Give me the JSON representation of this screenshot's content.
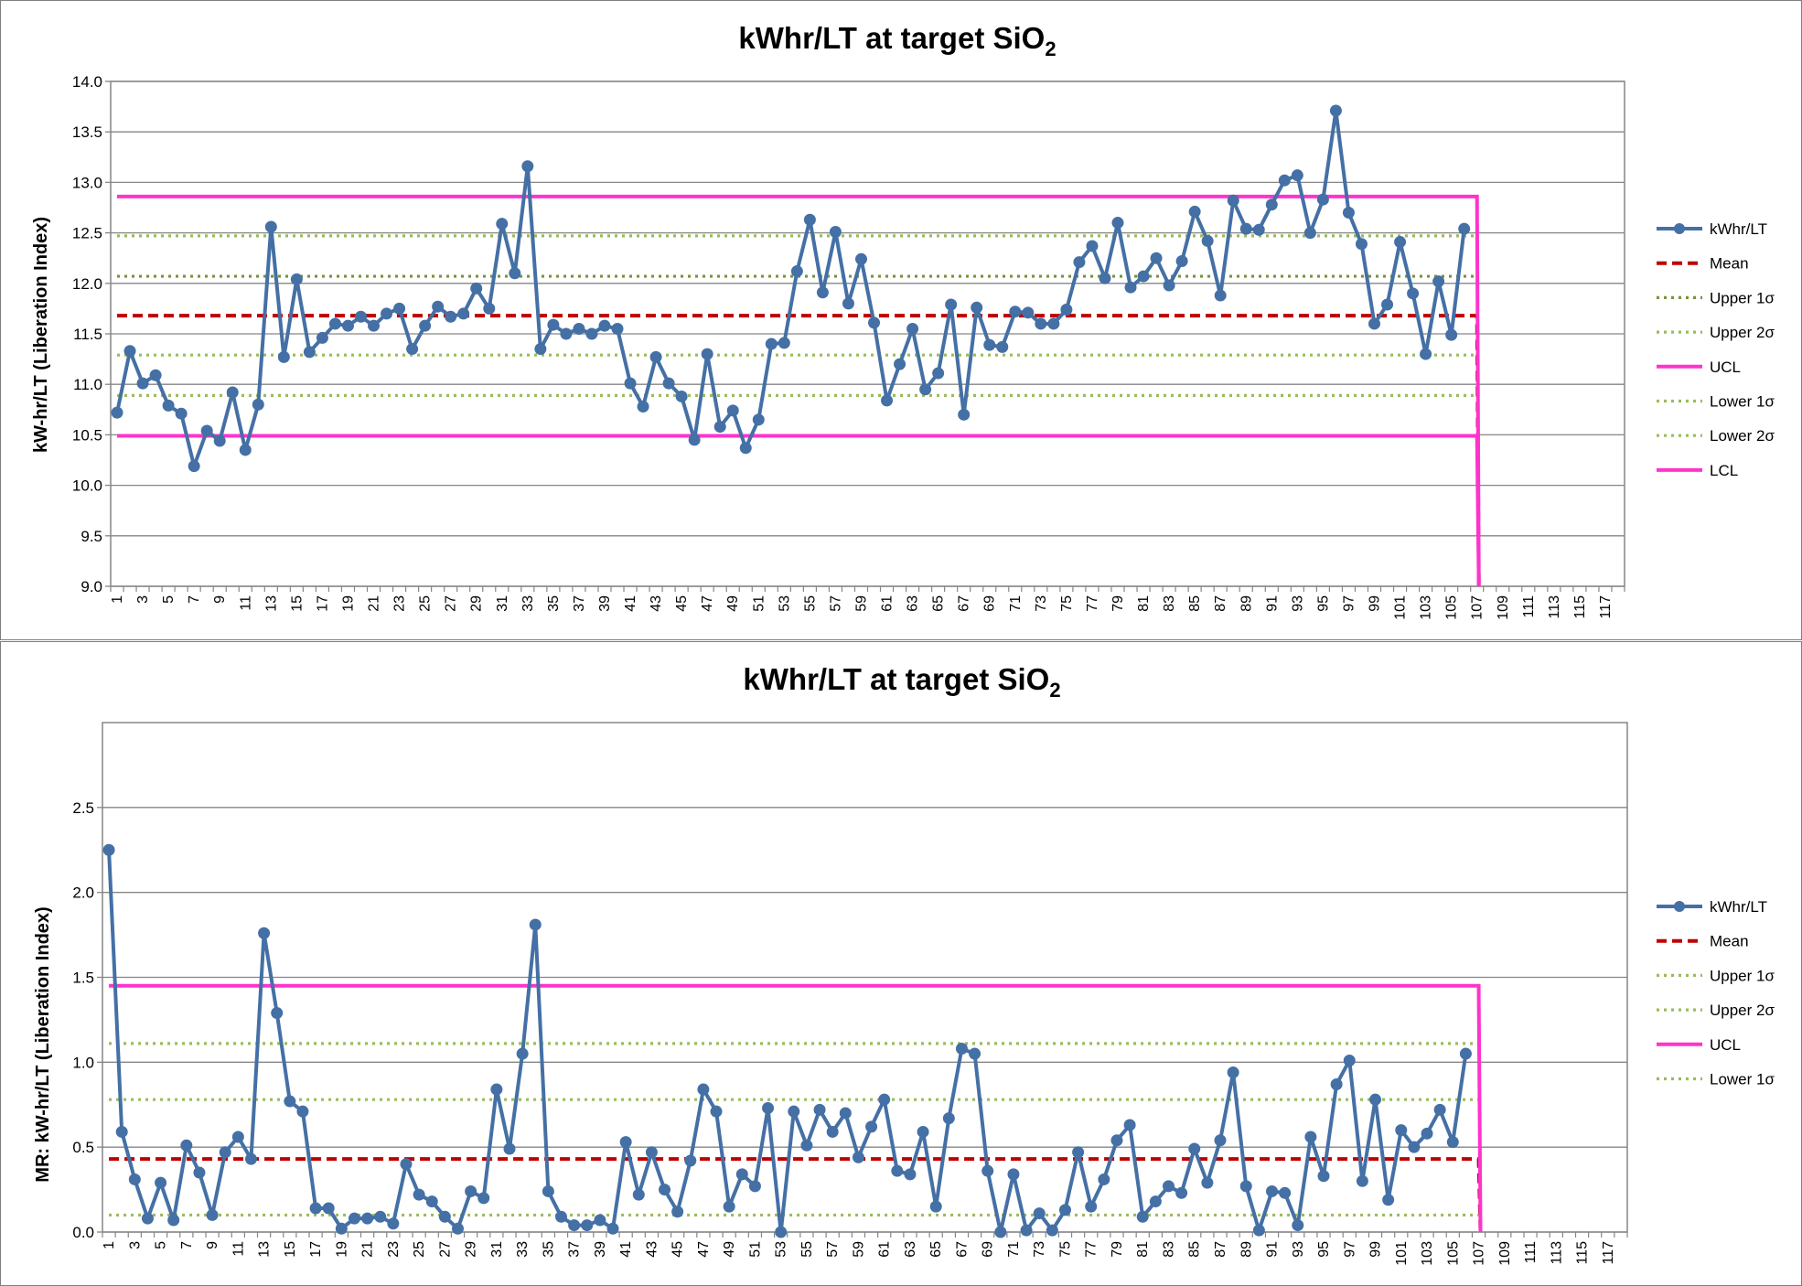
{
  "chart_data": [
    {
      "type": "line",
      "title": "kWhr/LT at target SiO",
      "title_subscript": "2",
      "xlabel": "",
      "ylabel": "kW-hr/LT (Liberation Index)",
      "ylim": [
        9.0,
        14.0
      ],
      "yticks": [
        "9.0",
        "9.5",
        "10.0",
        "10.5",
        "11.0",
        "11.5",
        "12.0",
        "12.5",
        "13.0",
        "13.5",
        "14.0"
      ],
      "x_categories_count": 118,
      "x_tick_labels": [
        "1",
        "3",
        "5",
        "7",
        "9",
        "11",
        "13",
        "15",
        "17",
        "19",
        "21",
        "23",
        "25",
        "27",
        "29",
        "31",
        "33",
        "35",
        "37",
        "39",
        "41",
        "43",
        "45",
        "47",
        "49",
        "51",
        "53",
        "55",
        "57",
        "59",
        "61",
        "63",
        "65",
        "67",
        "69",
        "71",
        "73",
        "75",
        "77",
        "79",
        "81",
        "83",
        "85",
        "87",
        "89",
        "91",
        "93",
        "95",
        "97",
        "99",
        "101",
        "103",
        "105",
        "107",
        "109",
        "111",
        "113",
        "115",
        "117"
      ],
      "grid": true,
      "legend_position": "right",
      "series": [
        {
          "name": "kWhr/LT",
          "color": "#4470a5",
          "style": "line-marker",
          "values": [
            10.72,
            11.33,
            11.01,
            11.09,
            10.79,
            10.71,
            10.19,
            10.54,
            10.44,
            10.92,
            10.35,
            10.8,
            12.56,
            11.27,
            12.04,
            11.32,
            11.46,
            11.6,
            11.58,
            11.67,
            11.58,
            11.7,
            11.75,
            11.35,
            11.58,
            11.77,
            11.67,
            11.7,
            11.95,
            11.75,
            12.59,
            12.1,
            13.16,
            11.35,
            11.59,
            11.5,
            11.55,
            11.5,
            11.58,
            11.55,
            11.01,
            10.78,
            11.27,
            11.01,
            10.88,
            10.45,
            11.3,
            10.58,
            10.74,
            10.37,
            10.65,
            11.4,
            11.41,
            12.12,
            12.63,
            11.91,
            12.51,
            11.8,
            12.24,
            11.61,
            10.84,
            11.2,
            11.55,
            10.95,
            11.11,
            11.79,
            10.7,
            11.76,
            11.39,
            11.37,
            11.72,
            11.71,
            11.6,
            11.6,
            11.74,
            12.21,
            12.37,
            12.05,
            12.6,
            11.96,
            12.07,
            12.25,
            11.98,
            12.22,
            12.71,
            12.42,
            11.88,
            12.82,
            12.54,
            12.53,
            12.78,
            13.02,
            13.07,
            12.5,
            12.83,
            13.71,
            12.7,
            12.39,
            11.6,
            11.79,
            12.41,
            11.9,
            11.3,
            12.02,
            11.49,
            12.54
          ]
        },
        {
          "name": "Mean",
          "color": "#c00000",
          "style": "dash",
          "values": [
            11.68,
            11.68
          ],
          "x_range": [
            1,
            107
          ],
          "drop_to": 9.0
        },
        {
          "name": "Upper 1σ",
          "color": "#77933c",
          "style": "dot",
          "values": [
            12.07,
            12.07
          ],
          "x_range": [
            1,
            107
          ]
        },
        {
          "name": "Upper 2σ",
          "color": "#9bbb59",
          "style": "dot",
          "values": [
            12.47,
            12.47
          ],
          "x_range": [
            1,
            107
          ]
        },
        {
          "name": "UCL",
          "color": "#ff33cc",
          "style": "solid",
          "values": [
            12.86,
            12.86
          ],
          "x_range": [
            1,
            107
          ],
          "drop_to": 9.0
        },
        {
          "name": "Lower 1σ",
          "color": "#9bbb59",
          "style": "dot",
          "values": [
            11.29,
            11.29
          ],
          "x_range": [
            1,
            107
          ]
        },
        {
          "name": "Lower 2σ",
          "color": "#9bbb59",
          "style": "dot",
          "values": [
            10.89,
            10.89
          ],
          "x_range": [
            1,
            107
          ]
        },
        {
          "name": "LCL",
          "color": "#ff33cc",
          "style": "solid",
          "values": [
            10.49,
            10.49
          ],
          "x_range": [
            1,
            107
          ],
          "drop_to": 9.0
        }
      ]
    },
    {
      "type": "line",
      "title": "kWhr/LT at target SiO",
      "title_subscript": "2",
      "xlabel": "",
      "ylabel": "MR: kW-hr/LT (Liberation Index)",
      "ylim": [
        0.0,
        3.0
      ],
      "yticks": [
        "0.0",
        "0.5",
        "1.0",
        "1.5",
        "2.0",
        "2.5"
      ],
      "x_categories_count": 118,
      "x_tick_labels": [
        "1",
        "3",
        "5",
        "7",
        "9",
        "11",
        "13",
        "15",
        "17",
        "19",
        "21",
        "23",
        "25",
        "27",
        "29",
        "31",
        "33",
        "35",
        "37",
        "39",
        "41",
        "43",
        "45",
        "47",
        "49",
        "51",
        "53",
        "55",
        "57",
        "59",
        "61",
        "63",
        "65",
        "67",
        "69",
        "71",
        "73",
        "75",
        "77",
        "79",
        "81",
        "83",
        "85",
        "87",
        "89",
        "91",
        "93",
        "95",
        "97",
        "99",
        "101",
        "103",
        "105",
        "107",
        "109",
        "111",
        "113",
        "115",
        "117"
      ],
      "grid": true,
      "legend_position": "right",
      "series": [
        {
          "name": "kWhr/LT",
          "color": "#4470a5",
          "style": "line-marker",
          "values": [
            2.25,
            0.59,
            0.31,
            0.08,
            0.29,
            0.07,
            0.51,
            0.35,
            0.1,
            0.47,
            0.56,
            0.43,
            1.76,
            1.29,
            0.77,
            0.71,
            0.14,
            0.14,
            0.02,
            0.08,
            0.08,
            0.09,
            0.05,
            0.4,
            0.22,
            0.18,
            0.09,
            0.02,
            0.24,
            0.2,
            0.84,
            0.49,
            1.05,
            1.81,
            0.24,
            0.09,
            0.04,
            0.04,
            0.07,
            0.02,
            0.53,
            0.22,
            0.47,
            0.25,
            0.12,
            0.42,
            0.84,
            0.71,
            0.15,
            0.34,
            0.27,
            0.73,
            0.0,
            0.71,
            0.51,
            0.72,
            0.59,
            0.7,
            0.44,
            0.62,
            0.78,
            0.36,
            0.34,
            0.59,
            0.15,
            0.67,
            1.08,
            1.05,
            0.36,
            0.0,
            0.34,
            0.01,
            0.11,
            0.01,
            0.13,
            0.47,
            0.15,
            0.31,
            0.54,
            0.63,
            0.09,
            0.18,
            0.27,
            0.23,
            0.49,
            0.29,
            0.54,
            0.94,
            0.27,
            0.01,
            0.24,
            0.23,
            0.04,
            0.56,
            0.33,
            0.87,
            1.01,
            0.3,
            0.78,
            0.19,
            0.6,
            0.5,
            0.58,
            0.72,
            0.53,
            1.05
          ]
        },
        {
          "name": "Mean",
          "color": "#c00000",
          "style": "dash",
          "values": [
            0.43,
            0.43
          ],
          "x_range": [
            1,
            107
          ],
          "drop_to": 0.0
        },
        {
          "name": "Upper 1σ",
          "color": "#9bbb59",
          "style": "dot",
          "values": [
            0.78,
            0.78
          ],
          "x_range": [
            1,
            107
          ]
        },
        {
          "name": "Upper 2σ",
          "color": "#9bbb59",
          "style": "dot",
          "values": [
            1.11,
            1.11
          ],
          "x_range": [
            1,
            107
          ]
        },
        {
          "name": "UCL",
          "color": "#ff33cc",
          "style": "solid",
          "values": [
            1.45,
            1.45
          ],
          "x_range": [
            1,
            107
          ],
          "drop_to": 0.0
        },
        {
          "name": "Lower 1σ",
          "color": "#9bbb59",
          "style": "dot",
          "values": [
            0.1,
            0.1
          ],
          "x_range": [
            1,
            107
          ]
        }
      ]
    }
  ]
}
